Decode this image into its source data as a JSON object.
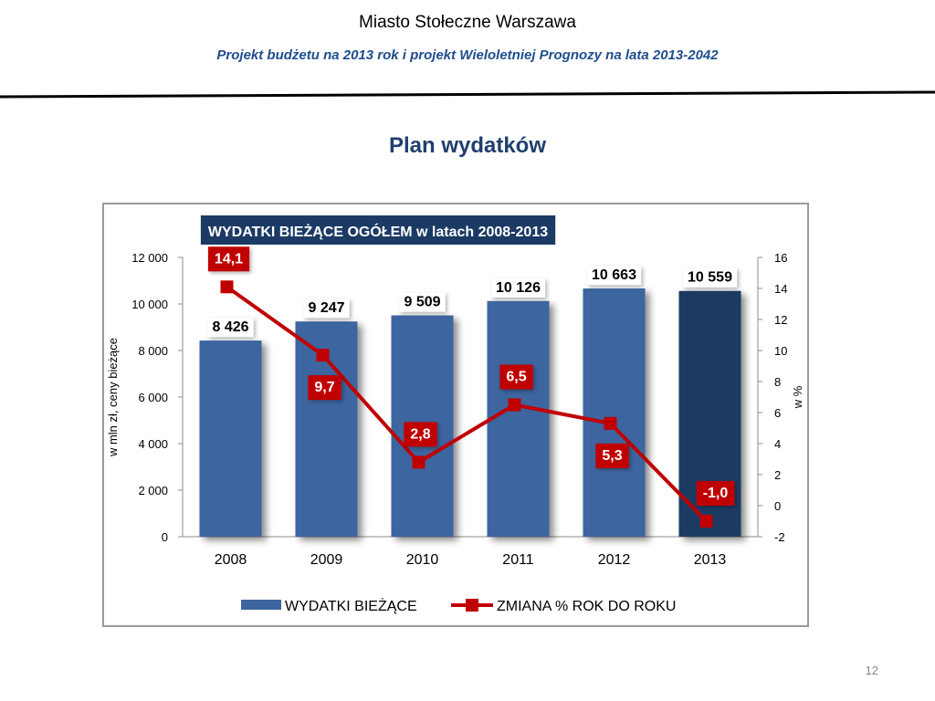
{
  "header": {
    "title": "Miasto Stołeczne Warszawa",
    "subtitle": "Projekt budżetu na 2013 rok i projekt Wieloletniej Prognozy na lata 2013-2042"
  },
  "slide": {
    "title": "Plan wydatków",
    "page_number": "12"
  },
  "colors": {
    "bar": "#3d659f",
    "bar_highlight": "#1b3a64",
    "line": "#c00000",
    "chart_title_bg": "#1b3a64"
  },
  "chart_data": {
    "type": "bar",
    "title": "WYDATKI BIEŻĄCE OGÓŁEM w latach 2008-2013",
    "categories": [
      "2008",
      "2009",
      "2010",
      "2011",
      "2012",
      "2013"
    ],
    "series": [
      {
        "name": "WYDATKI BIEŻĄCE",
        "type": "bar",
        "axis": "left",
        "values": [
          8426,
          9247,
          9509,
          10126,
          10663,
          10559
        ],
        "labels": [
          "8 426",
          "9 247",
          "9 509",
          "10 126",
          "10 663",
          "10 559"
        ]
      },
      {
        "name": "ZMIANA % ROK DO ROKU",
        "type": "line",
        "axis": "right",
        "values": [
          14.1,
          9.7,
          2.8,
          6.5,
          5.3,
          -1.0
        ],
        "labels": [
          "14,1",
          "9,7",
          "2,8",
          "6,5",
          "5,3",
          "-1,0"
        ]
      }
    ],
    "ylabel": "w mln zł, ceny bieżące",
    "y2label": "w %",
    "ylim": [
      0,
      12000
    ],
    "y2lim": [
      -2,
      16
    ],
    "yticks": [
      "0",
      "2 000",
      "4 000",
      "6 000",
      "8 000",
      "10 000",
      "12 000"
    ],
    "y2ticks": [
      "-2",
      "0",
      "2",
      "4",
      "6",
      "8",
      "10",
      "12",
      "14",
      "16"
    ],
    "grid": false,
    "legend_position": "bottom"
  }
}
